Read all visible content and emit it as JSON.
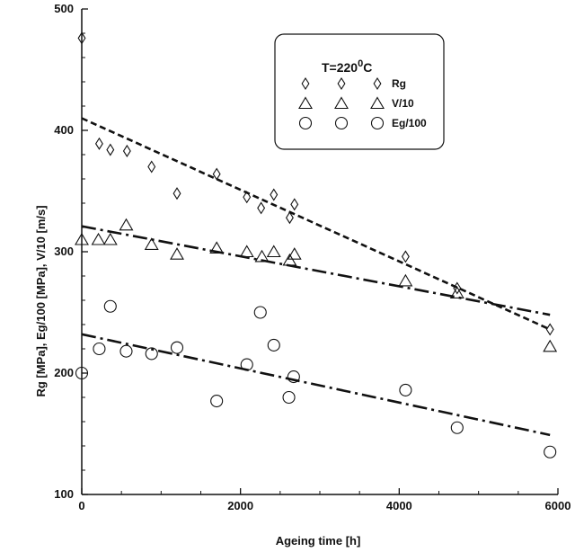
{
  "chart_data": {
    "type": "scatter",
    "xlabel": "Ageing time [h]",
    "ylabel": "Rg [MPa],   Eg/100 [MPa],   V/10 [m/s]",
    "xlim": [
      0,
      6000
    ],
    "ylim": [
      100,
      500
    ],
    "x_ticks": [
      "0",
      "2000",
      "4000",
      "6000"
    ],
    "y_ticks": [
      "100",
      "200",
      "300",
      "400",
      "500"
    ],
    "grid": false,
    "legend": {
      "title_main": "T=220",
      "title_sup": "0",
      "title_unit": "C",
      "placement": "top-right"
    },
    "series": [
      {
        "name": "Rg",
        "marker": "diamond",
        "points": [
          [
            0,
            476
          ],
          [
            220,
            389
          ],
          [
            360,
            384
          ],
          [
            570,
            383
          ],
          [
            880,
            370
          ],
          [
            1200,
            348
          ],
          [
            1700,
            364
          ],
          [
            2080,
            345
          ],
          [
            2260,
            336
          ],
          [
            2420,
            347
          ],
          [
            2620,
            328
          ],
          [
            2680,
            339
          ],
          [
            4080,
            296
          ],
          [
            4730,
            270
          ],
          [
            5900,
            236
          ]
        ],
        "trend": {
          "style": "dashed",
          "from": [
            0,
            410
          ],
          "to": [
            5900,
            236
          ]
        }
      },
      {
        "name": "V/10",
        "marker": "triangle",
        "points": [
          [
            0,
            310
          ],
          [
            210,
            310
          ],
          [
            360,
            310
          ],
          [
            560,
            322
          ],
          [
            880,
            306
          ],
          [
            1200,
            298
          ],
          [
            1700,
            303
          ],
          [
            2080,
            300
          ],
          [
            2270,
            296
          ],
          [
            2420,
            300
          ],
          [
            2620,
            293
          ],
          [
            2680,
            298
          ],
          [
            4080,
            276
          ],
          [
            4730,
            266
          ],
          [
            5900,
            222
          ]
        ],
        "trend": {
          "style": "dash-dot",
          "from": [
            0,
            321
          ],
          "to": [
            5900,
            248
          ]
        }
      },
      {
        "name": "Eg/100",
        "marker": "circle",
        "points": [
          [
            0,
            200
          ],
          [
            220,
            220
          ],
          [
            360,
            255
          ],
          [
            560,
            218
          ],
          [
            880,
            216
          ],
          [
            1200,
            221
          ],
          [
            1700,
            177
          ],
          [
            2080,
            207
          ],
          [
            2250,
            250
          ],
          [
            2420,
            223
          ],
          [
            2610,
            180
          ],
          [
            2670,
            197
          ],
          [
            4080,
            186
          ],
          [
            4730,
            155
          ],
          [
            5900,
            135
          ]
        ],
        "trend": {
          "style": "dash-dot",
          "from": [
            0,
            232
          ],
          "to": [
            5900,
            149
          ]
        }
      }
    ]
  }
}
